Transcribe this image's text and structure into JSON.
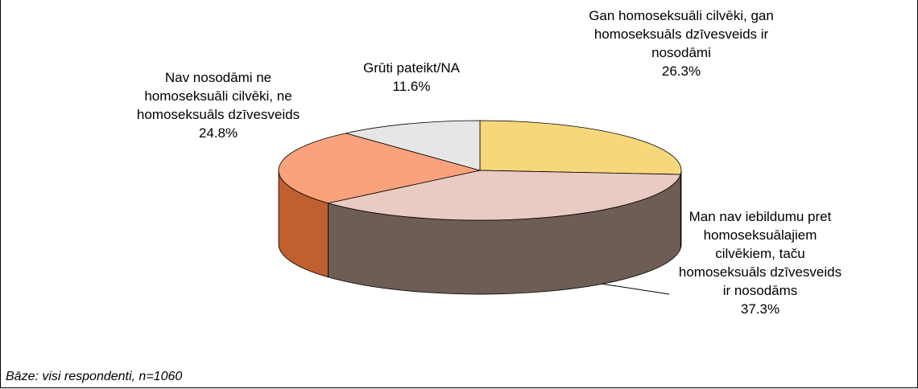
{
  "chart_data": {
    "type": "pie",
    "categories": [
      "Gan homoseksuāli cilvēki, gan homoseksuāls dzīvesveids ir nosodāmi",
      "Man nav iebildumu pret homoseksuālajiem cilvēkiem, taču homoseksuāls dzīvesveids ir nosodāms",
      "Nav nosodāmi ne homoseksuāli cilvēki, ne homoseksuāls dzīvesveids",
      "Grūti pateikt/NA"
    ],
    "values": [
      26.3,
      37.3,
      24.8,
      11.6
    ],
    "value_labels": [
      "26.3%",
      "37.3%",
      "24.8%",
      "11.6%"
    ],
    "colors": [
      "#f6d77a",
      "#e9cbc3",
      "#f9a27c",
      "#e6e6e6"
    ],
    "side_colors": [
      "#c9a640",
      "#6e5d55",
      "#c0602f",
      "#a0a0a0"
    ],
    "note": "Bāze: visi respondenti, n=1060"
  }
}
